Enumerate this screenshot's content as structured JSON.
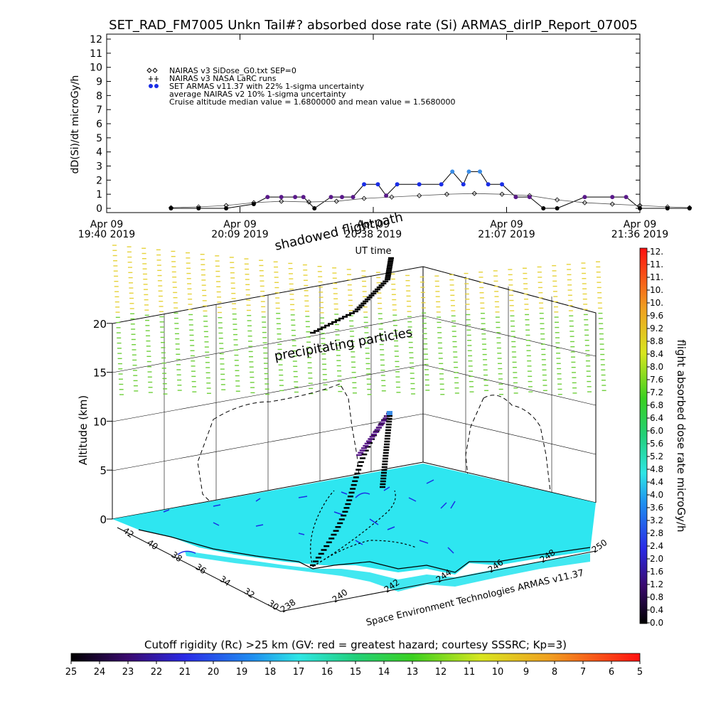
{
  "title": "SET_RAD_FM7005  Unkn Tail#? absorbed dose rate (Si) ARMAS_dirIP_Report_07005",
  "chart_data": [
    {
      "type": "line",
      "ylabel": "dD(Si)/dt microGy/h",
      "xlabel": "UT time",
      "ylim": [
        0,
        12
      ],
      "yticks": [
        "0",
        "1",
        "2",
        "3",
        "4",
        "5",
        "6",
        "7",
        "8",
        "9",
        "10",
        "11",
        "12"
      ],
      "xticks": [
        {
          "date": "Apr 09",
          "time": "19:40 2019"
        },
        {
          "date": "Apr 09",
          "time": "20:09 2019"
        },
        {
          "date": "Apr 09",
          "time": "20:38 2019"
        },
        {
          "date": "Apr 09",
          "time": "21:07 2019"
        },
        {
          "date": "Apr 09",
          "time": "21:36 2019"
        }
      ],
      "legend": [
        "NAIRAS v3 SiDose_G0.txt SEP=0",
        "NAIRAS v3 NASA LaRC runs",
        "SET ARMAS v11.37 with 22% 1-sigma uncertainty",
        "average NAIRAS v2 10% 1-sigma uncertainty",
        "Cruise altitude median value = 1.6800000 and mean value = 1.5680000"
      ],
      "series": [
        {
          "name": "SET ARMAS v11.37 with 22% 1-sigma uncertainty",
          "points": [
            [
              19.9,
              0
            ],
            [
              20.0,
              0
            ],
            [
              20.1,
              0
            ],
            [
              20.2,
              0.3
            ],
            [
              20.25,
              0.8
            ],
            [
              20.3,
              0.8
            ],
            [
              20.35,
              0.8
            ],
            [
              20.38,
              0.8
            ],
            [
              20.42,
              0
            ],
            [
              20.48,
              0.8
            ],
            [
              20.52,
              0.8
            ],
            [
              20.56,
              0.8
            ],
            [
              20.6,
              1.7
            ],
            [
              20.65,
              1.7
            ],
            [
              20.68,
              0.9
            ],
            [
              20.72,
              1.7
            ],
            [
              20.8,
              1.7
            ],
            [
              20.88,
              1.7
            ],
            [
              20.92,
              2.6
            ],
            [
              20.96,
              1.7
            ],
            [
              20.98,
              2.6
            ],
            [
              21.02,
              2.6
            ],
            [
              21.05,
              1.7
            ],
            [
              21.1,
              1.7
            ],
            [
              21.15,
              0.8
            ],
            [
              21.2,
              0.8
            ],
            [
              21.25,
              0
            ],
            [
              21.3,
              0
            ],
            [
              21.4,
              0.8
            ],
            [
              21.5,
              0.8
            ],
            [
              21.55,
              0.8
            ],
            [
              21.6,
              0
            ],
            [
              21.7,
              0
            ],
            [
              21.78,
              0
            ]
          ]
        },
        {
          "name": "NAIRAS v3 SiDose_G0.txt SEP=0",
          "points": [
            [
              19.9,
              0.05
            ],
            [
              20.0,
              0.1
            ],
            [
              20.1,
              0.2
            ],
            [
              20.2,
              0.4
            ],
            [
              20.3,
              0.5
            ],
            [
              20.4,
              0.45
            ],
            [
              20.5,
              0.5
            ],
            [
              20.6,
              0.7
            ],
            [
              20.7,
              0.8
            ],
            [
              20.8,
              0.9
            ],
            [
              20.9,
              1.0
            ],
            [
              21.0,
              1.05
            ],
            [
              21.1,
              1.0
            ],
            [
              21.2,
              0.9
            ],
            [
              21.3,
              0.6
            ],
            [
              21.4,
              0.4
            ],
            [
              21.5,
              0.3
            ],
            [
              21.6,
              0.2
            ],
            [
              21.7,
              0.1
            ],
            [
              21.78,
              0.05
            ]
          ]
        }
      ]
    },
    {
      "type": "scatter",
      "ylabel": "Altitude (km)",
      "zticks": [
        "0",
        "5",
        "10",
        "15",
        "20"
      ],
      "lat_ticks": [
        "42",
        "40",
        "38",
        "36",
        "34",
        "32",
        "30"
      ],
      "lon_ticks": [
        "238",
        "240",
        "242",
        "244",
        "246",
        "248",
        "250"
      ],
      "annotations": [
        "shadowed flightpath",
        "precipitating particles"
      ],
      "footer": "Space Environment Technologies ARMAS v11.37"
    }
  ],
  "colorbar_right": {
    "label": "flight absorbed dose rate microGy/h",
    "ticks": [
      "12.",
      "11.",
      "11.",
      "10.",
      "10.",
      "9.6",
      "9.2",
      "8.8",
      "8.4",
      "8.0",
      "7.6",
      "7.2",
      "6.8",
      "6.4",
      "6.0",
      "5.6",
      "5.2",
      "4.8",
      "4.4",
      "4.0",
      "3.6",
      "3.2",
      "2.8",
      "2.4",
      "2.0",
      "1.6",
      "1.2",
      "0.8",
      "0.4",
      "0.0"
    ]
  },
  "colorbar_bottom": {
    "label": "Cutoff rigidity (Rc) >25 km (GV: red = greatest hazard; courtesy SSSRC; Kp=3)",
    "ticks": [
      "25",
      "24",
      "23",
      "22",
      "21",
      "20",
      "19",
      "18",
      "17",
      "16",
      "15",
      "14",
      "13",
      "12",
      "11",
      "10",
      "9",
      "8",
      "7",
      "6",
      "5"
    ]
  },
  "colors": {
    "armas": "#1a2ee6",
    "armas_peak": "#3a8ce6",
    "purple": "#5a1a8a",
    "ground": "#2ee6f0",
    "green_particles": "#6ecf3a",
    "yellow_particles": "#e6d23a"
  }
}
